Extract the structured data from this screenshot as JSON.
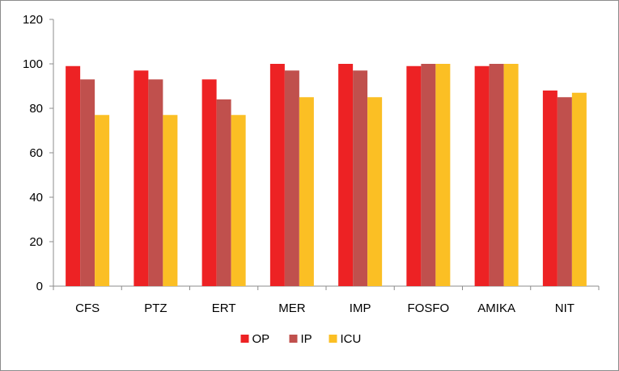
{
  "chart_data": {
    "type": "bar",
    "title": "",
    "xlabel": "",
    "ylabel": "",
    "categories": [
      "CFS",
      "PTZ",
      "ERT",
      "MER",
      "IMP",
      "FOSFO",
      "AMIKA",
      "NIT"
    ],
    "series": [
      {
        "name": "OP",
        "color": "#ed2224",
        "values": [
          99,
          97,
          93,
          100,
          100,
          99,
          99,
          88
        ]
      },
      {
        "name": "IP",
        "color": "#c0504d",
        "values": [
          93,
          93,
          84,
          97,
          97,
          100,
          100,
          85
        ]
      },
      {
        "name": "ICU",
        "color": "#fbbf24",
        "values": [
          77,
          77,
          77,
          85,
          85,
          100,
          100,
          87
        ]
      }
    ],
    "ylim": [
      0,
      120
    ],
    "yticks": [
      0,
      20,
      40,
      60,
      80,
      100,
      120
    ],
    "grid": false,
    "legend": "bottom-center"
  }
}
